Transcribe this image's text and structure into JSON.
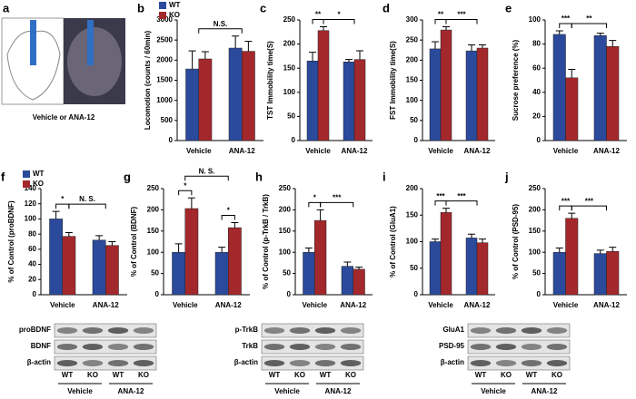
{
  "panel_a": {
    "panel": "a",
    "caption": "Vehicle or ANA-12"
  },
  "chart_data": [
    {
      "type": "bar",
      "panel": "b",
      "ylabel": "Locomotion (counts / 60min)",
      "categories": [
        "Vehicle",
        "ANA-12"
      ],
      "legend": "upper left",
      "series": [
        {
          "name": "WT",
          "color": "#2b4a9c",
          "values": [
            1780,
            2300
          ],
          "errors": [
            450,
            300
          ]
        },
        {
          "name": "KO",
          "color": "#a3282c",
          "values": [
            2030,
            2220
          ],
          "errors": [
            180,
            250
          ]
        }
      ],
      "ylim": [
        0,
        3000
      ],
      "yticks": [
        0,
        500,
        1000,
        1500,
        2000,
        2500,
        3000
      ],
      "annotations": [
        "N.S."
      ]
    },
    {
      "type": "bar",
      "panel": "c",
      "ylabel": "TST Immobility time(S)",
      "categories": [
        "Vehicle",
        "ANA-12"
      ],
      "series": [
        {
          "name": "WT",
          "color": "#2b4a9c",
          "values": [
            165,
            163
          ],
          "errors": [
            18,
            5
          ]
        },
        {
          "name": "KO",
          "color": "#a3282c",
          "values": [
            228,
            168
          ],
          "errors": [
            8,
            18
          ]
        }
      ],
      "ylim": [
        0,
        250
      ],
      "yticks": [
        0,
        50,
        100,
        150,
        200,
        250
      ],
      "annotations": [
        "**",
        "*"
      ]
    },
    {
      "type": "bar",
      "panel": "d",
      "ylabel": "FST Immobility time(S)",
      "categories": [
        "Vehicle",
        "ANA-12"
      ],
      "series": [
        {
          "name": "WT",
          "color": "#2b4a9c",
          "values": [
            228,
            223
          ],
          "errors": [
            18,
            15
          ]
        },
        {
          "name": "KO",
          "color": "#a3282c",
          "values": [
            275,
            230
          ],
          "errors": [
            8,
            8
          ]
        }
      ],
      "ylim": [
        0,
        300
      ],
      "yticks": [
        0,
        50,
        100,
        150,
        200,
        250,
        300
      ],
      "annotations": [
        "**",
        "***"
      ]
    },
    {
      "type": "bar",
      "panel": "e",
      "ylabel": "Sucrose preference (%)",
      "categories": [
        "Vehicle",
        "ANA-12"
      ],
      "series": [
        {
          "name": "WT",
          "color": "#2b4a9c",
          "values": [
            88,
            87
          ],
          "errors": [
            3,
            2
          ]
        },
        {
          "name": "KO",
          "color": "#a3282c",
          "values": [
            52,
            78
          ],
          "errors": [
            7,
            5
          ]
        }
      ],
      "ylim": [
        0,
        100
      ],
      "yticks": [
        0,
        20,
        40,
        60,
        80,
        100
      ],
      "annotations": [
        "***",
        "**"
      ]
    },
    {
      "type": "bar",
      "panel": "f",
      "ylabel": "% of Control (proBDNF)",
      "categories": [
        "Vehicle",
        "ANA-12"
      ],
      "legend": "upper left",
      "series": [
        {
          "name": "WT",
          "color": "#2b4a9c",
          "values": [
            100,
            72
          ],
          "errors": [
            10,
            6
          ]
        },
        {
          "name": "KO",
          "color": "#a3282c",
          "values": [
            77,
            65
          ],
          "errors": [
            5,
            5
          ]
        }
      ],
      "ylim": [
        0,
        140
      ],
      "yticks": [
        0,
        20,
        40,
        60,
        80,
        100,
        120,
        140
      ],
      "annotations": [
        "*",
        "N. S."
      ]
    },
    {
      "type": "bar",
      "panel": "g",
      "ylabel": "% of Control (BDNF)",
      "categories": [
        "Vehicle",
        "ANA-12"
      ],
      "series": [
        {
          "name": "WT",
          "color": "#2b4a9c",
          "values": [
            100,
            100
          ],
          "errors": [
            20,
            12
          ]
        },
        {
          "name": "KO",
          "color": "#a3282c",
          "values": [
            203,
            158
          ],
          "errors": [
            25,
            12
          ]
        }
      ],
      "ylim": [
        0,
        250
      ],
      "yticks": [
        0,
        50,
        100,
        150,
        200,
        250
      ],
      "annotations": [
        "*",
        "N. S.",
        "*"
      ]
    },
    {
      "type": "bar",
      "panel": "h",
      "ylabel": "% of Control (p-TrkB / TrkB)",
      "categories": [
        "Vehicle",
        "ANA-12"
      ],
      "series": [
        {
          "name": "WT",
          "color": "#2b4a9c",
          "values": [
            100,
            67
          ],
          "errors": [
            10,
            10
          ]
        },
        {
          "name": "KO",
          "color": "#a3282c",
          "values": [
            175,
            60
          ],
          "errors": [
            25,
            5
          ]
        }
      ],
      "ylim": [
        0,
        250
      ],
      "yticks": [
        0,
        50,
        100,
        150,
        200,
        250
      ],
      "annotations": [
        "*",
        "***"
      ]
    },
    {
      "type": "bar",
      "panel": "i",
      "ylabel": "% of Control (GluA1)",
      "categories": [
        "Vehicle",
        "ANA-12"
      ],
      "series": [
        {
          "name": "WT",
          "color": "#2b4a9c",
          "values": [
            100,
            107
          ],
          "errors": [
            5,
            7
          ]
        },
        {
          "name": "KO",
          "color": "#a3282c",
          "values": [
            155,
            98
          ],
          "errors": [
            8,
            7
          ]
        }
      ],
      "ylim": [
        0,
        200
      ],
      "yticks": [
        0,
        50,
        100,
        150,
        200
      ],
      "annotations": [
        "***",
        "***"
      ]
    },
    {
      "type": "bar",
      "panel": "j",
      "ylabel": "% of Control (PSD-95)",
      "categories": [
        "Vehicle",
        "ANA-12"
      ],
      "series": [
        {
          "name": "WT",
          "color": "#2b4a9c",
          "values": [
            100,
            97
          ],
          "errors": [
            10,
            8
          ]
        },
        {
          "name": "KO",
          "color": "#a3282c",
          "values": [
            180,
            102
          ],
          "errors": [
            12,
            10
          ]
        }
      ],
      "ylim": [
        0,
        250
      ],
      "yticks": [
        0,
        50,
        100,
        150,
        200,
        250
      ],
      "annotations": [
        "***",
        "***"
      ]
    }
  ],
  "blots": [
    {
      "bands": [
        "proBDNF",
        "BDNF",
        "β-actin"
      ],
      "lanes": [
        "WT",
        "KO",
        "WT",
        "KO"
      ],
      "groups": [
        "Vehicle",
        "ANA-12"
      ]
    },
    {
      "bands": [
        "p-TrkB",
        "TrkB",
        "β-actin"
      ],
      "lanes": [
        "WT",
        "KO",
        "WT",
        "KO"
      ],
      "groups": [
        "Vehicle",
        "ANA-12"
      ]
    },
    {
      "bands": [
        "GluA1",
        "PSD-95",
        "β-actin"
      ],
      "lanes": [
        "WT",
        "KO",
        "WT",
        "KO"
      ],
      "groups": [
        "Vehicle",
        "ANA-12"
      ]
    }
  ]
}
